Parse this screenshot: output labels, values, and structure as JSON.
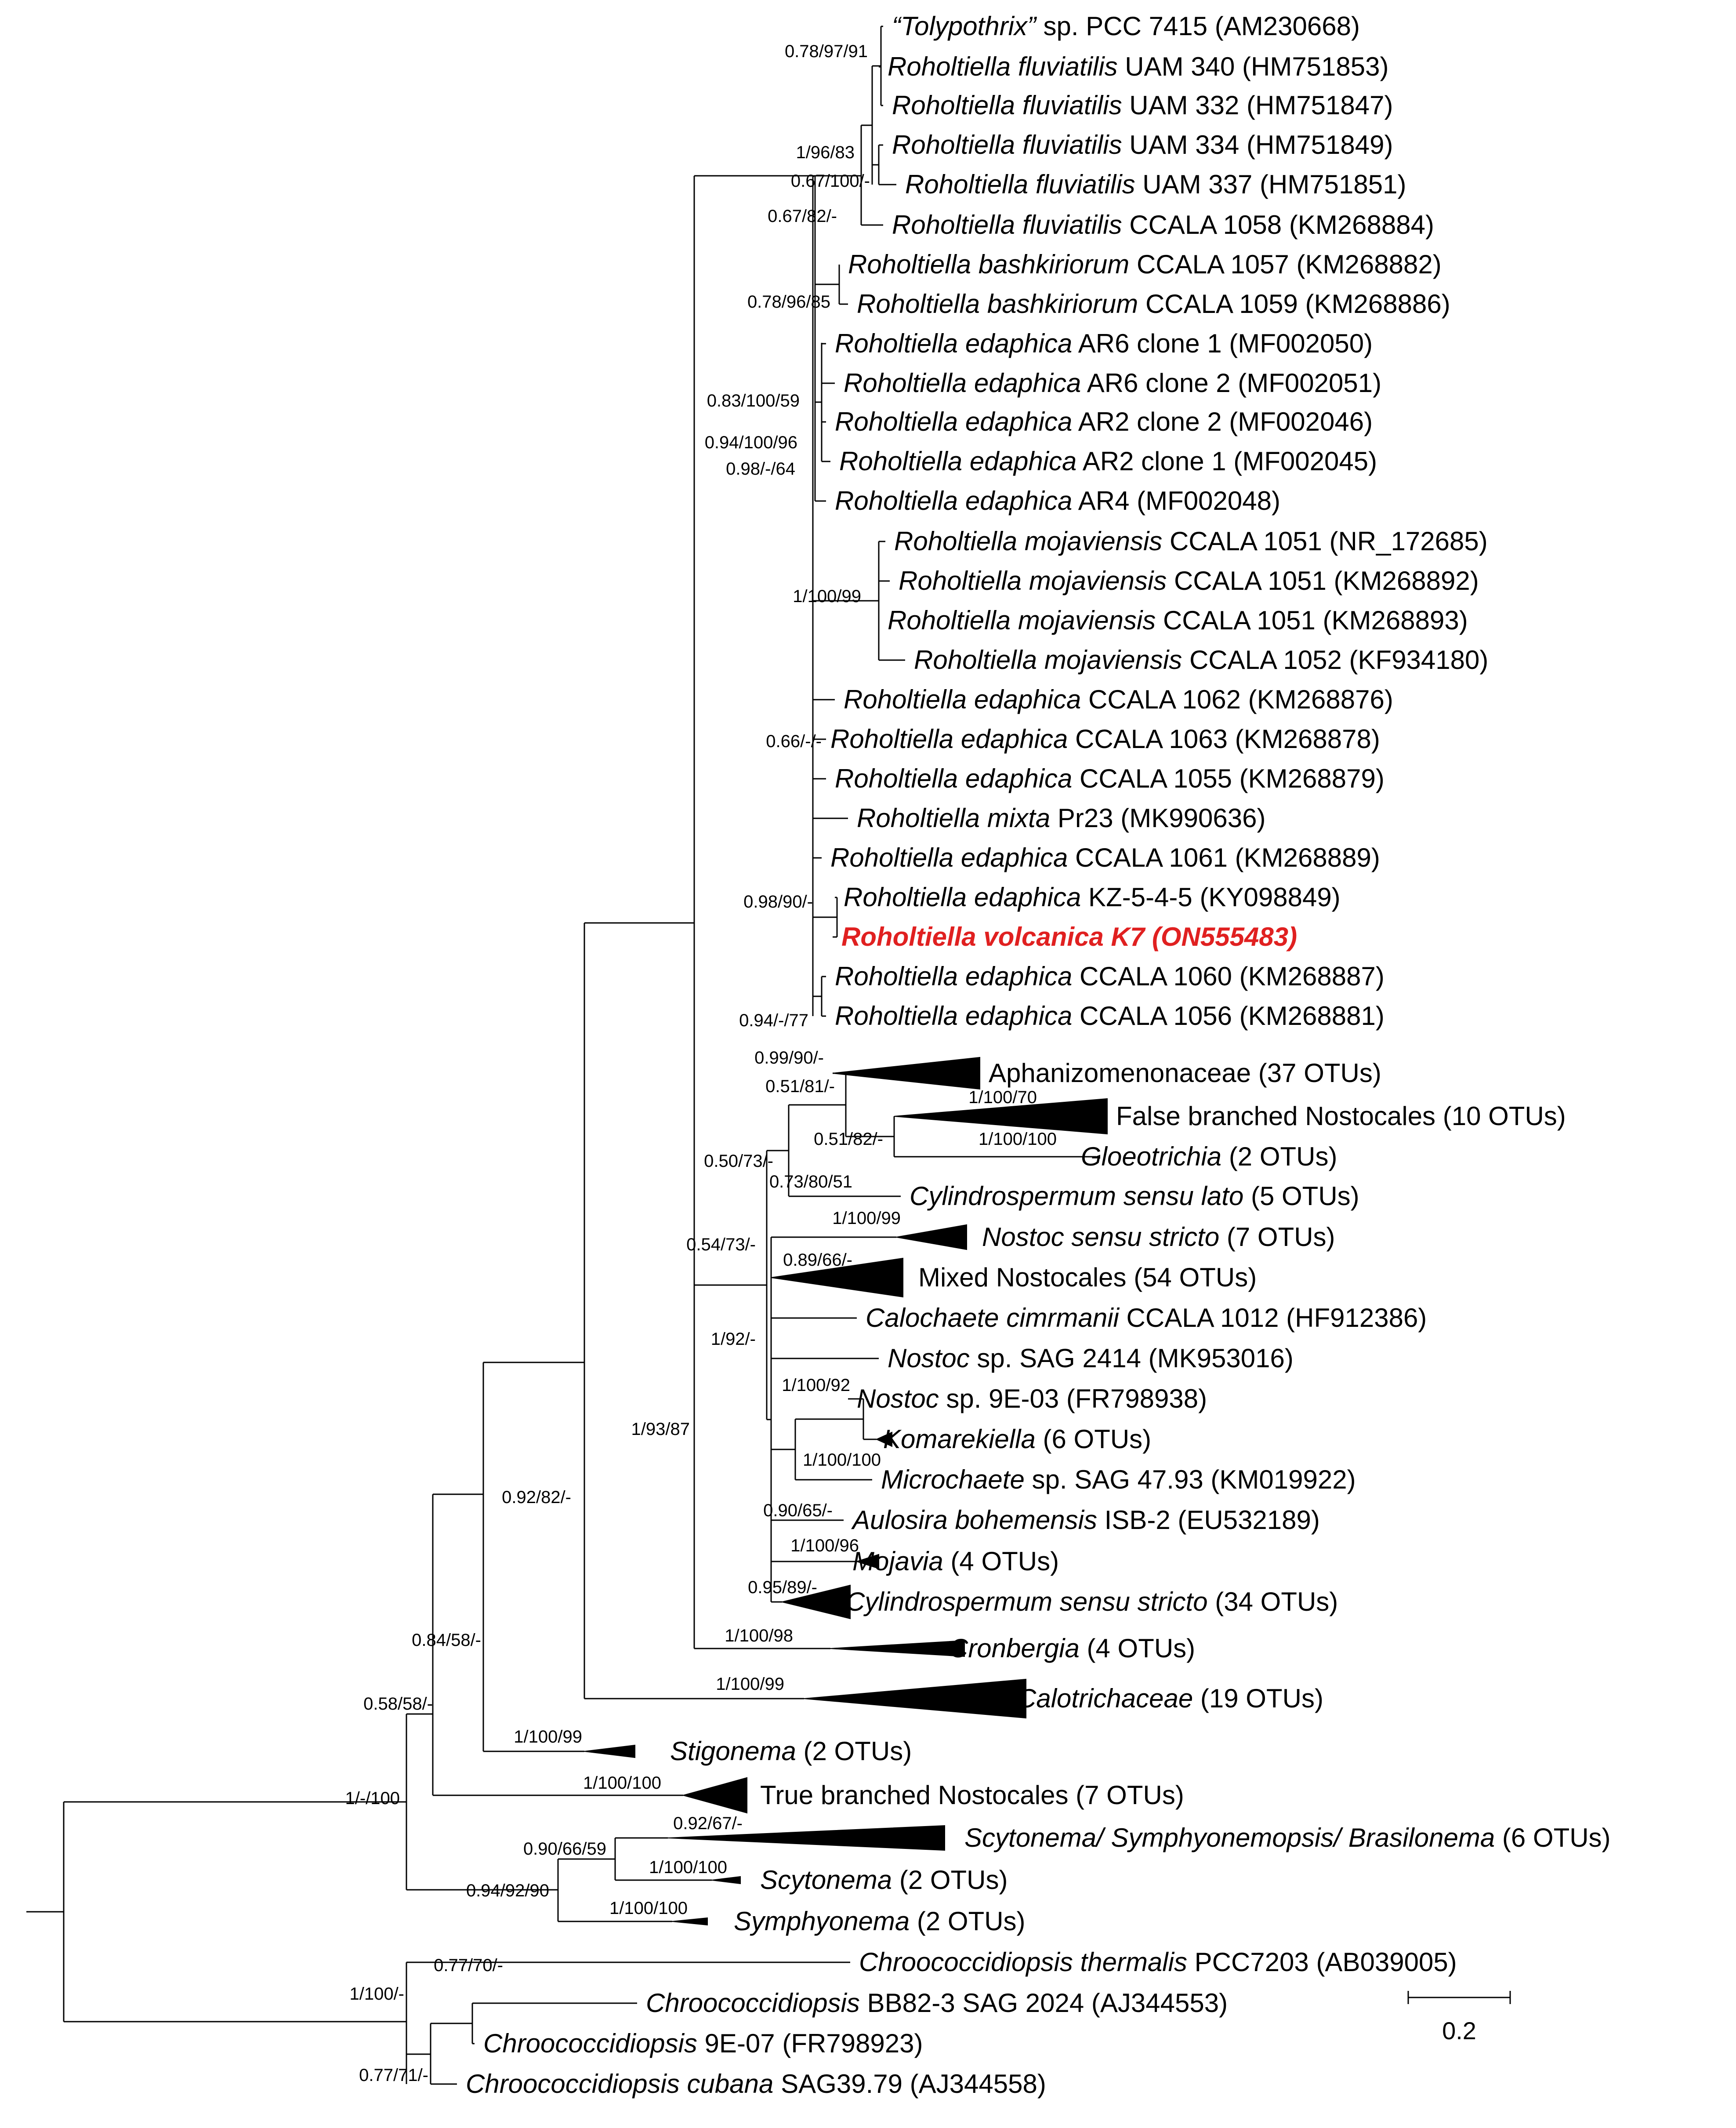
{
  "figure": {
    "type": "phylogenetic-tree",
    "highlight_color": "#e02020",
    "line_color": "#000000"
  },
  "tips": [
    {
      "id": "t1",
      "genus": "“Tolypothrix”",
      "rest": " sp. PCC 7415 (AM230668)"
    },
    {
      "id": "t2",
      "genus": "Roholtiella fluviatilis",
      "rest": " UAM 340 (HM751853)"
    },
    {
      "id": "t3",
      "genus": "Roholtiella fluviatilis",
      "rest": " UAM 332 (HM751847)"
    },
    {
      "id": "t4",
      "genus": "Roholtiella fluviatilis",
      "rest": " UAM 334 (HM751849)"
    },
    {
      "id": "t5",
      "genus": "Roholtiella fluviatilis",
      "rest": " UAM 337 (HM751851)"
    },
    {
      "id": "t6",
      "genus": "Roholtiella fluviatilis",
      "rest": " CCALA 1058 (KM268884)"
    },
    {
      "id": "t7",
      "genus": "Roholtiella bashkiriorum",
      "rest": " CCALA 1057 (KM268882)"
    },
    {
      "id": "t8",
      "genus": "Roholtiella bashkiriorum",
      "rest": " CCALA 1059 (KM268886)"
    },
    {
      "id": "t9",
      "genus": "Roholtiella edaphica",
      "rest": " AR6 clone 1 (MF002050)"
    },
    {
      "id": "t10",
      "genus": "Roholtiella edaphica",
      "rest": " AR6 clone 2 (MF002051)"
    },
    {
      "id": "t11",
      "genus": "Roholtiella edaphica",
      "rest": " AR2 clone 2 (MF002046)"
    },
    {
      "id": "t12",
      "genus": "Roholtiella edaphica",
      "rest": " AR2 clone 1 (MF002045)"
    },
    {
      "id": "t13",
      "genus": "Roholtiella edaphica",
      "rest": " AR4 (MF002048)"
    },
    {
      "id": "t14",
      "genus": "Roholtiella mojaviensis",
      "rest": " CCALA 1051 (NR_172685)"
    },
    {
      "id": "t15",
      "genus": "Roholtiella mojaviensis",
      "rest": " CCALA 1051 (KM268892)"
    },
    {
      "id": "t16",
      "genus": "Roholtiella mojaviensis",
      "rest": " CCALA 1051 (KM268893)"
    },
    {
      "id": "t17",
      "genus": "Roholtiella mojaviensis",
      "rest": " CCALA 1052 (KF934180)"
    },
    {
      "id": "t18",
      "genus": "Roholtiella edaphica",
      "rest": " CCALA 1062 (KM268876)"
    },
    {
      "id": "t19",
      "genus": "Roholtiella edaphica",
      "rest": " CCALA 1063 (KM268878)"
    },
    {
      "id": "t20",
      "genus": "Roholtiella edaphica",
      "rest": " CCALA 1055 (KM268879)"
    },
    {
      "id": "t21",
      "genus": "Roholtiella mixta",
      "rest": " Pr23 (MK990636)"
    },
    {
      "id": "t22",
      "genus": "Roholtiella edaphica",
      "rest": " CCALA 1061 (KM268889)"
    },
    {
      "id": "t23",
      "genus": "Roholtiella edaphica",
      "rest": " KZ-5-4-5 (KY098849)"
    },
    {
      "id": "t24",
      "genus": "Roholtiella volcanica K7 (ON555483)",
      "rest": "",
      "highlight": true
    },
    {
      "id": "t25",
      "genus": "Roholtiella edaphica",
      "rest": " CCALA 1060 (KM268887)"
    },
    {
      "id": "t26",
      "genus": "Roholtiella edaphica",
      "rest": " CCALA 1056 (KM268881)"
    },
    {
      "id": "t27",
      "genus": "",
      "rest": "Aphanizomenonaceae (37 OTUs)"
    },
    {
      "id": "t28",
      "genus": "",
      "rest": "False branched Nostocales (10 OTUs)"
    },
    {
      "id": "t29",
      "genus": "Gloeotrichia",
      "rest": " (2 OTUs)"
    },
    {
      "id": "t30",
      "genus": "Cylindrospermum sensu lato",
      "rest": " (5 OTUs)"
    },
    {
      "id": "t31",
      "genus": "Nostoc sensu stricto",
      "rest": " (7 OTUs)"
    },
    {
      "id": "t32",
      "genus": "",
      "rest": "Mixed Nostocales (54 OTUs)"
    },
    {
      "id": "t33",
      "genus": "Calochaete cimrmanii",
      "rest": " CCALA 1012 (HF912386)"
    },
    {
      "id": "t34",
      "genus": "Nostoc",
      "rest": " sp. SAG 2414 (MK953016)"
    },
    {
      "id": "t35",
      "genus": "Nostoc",
      "rest": " sp. 9E-03 (FR798938)"
    },
    {
      "id": "t36",
      "genus": "Komarekiella",
      "rest": " (6 OTUs)"
    },
    {
      "id": "t37",
      "genus": "Microchaete",
      "rest": " sp. SAG 47.93 (KM019922)"
    },
    {
      "id": "t38",
      "genus": "Aulosira bohemensis",
      "rest": " ISB-2 (EU532189)"
    },
    {
      "id": "t39",
      "genus": "Mojavia",
      "rest": " (4 OTUs)"
    },
    {
      "id": "t40",
      "genus": "Cylindrospermum sensu stricto",
      "rest": " (34 OTUs)"
    },
    {
      "id": "t41",
      "genus": "Cronbergia",
      "rest": " (4 OTUs)"
    },
    {
      "id": "t42",
      "genus": "Calotrichaceae",
      "rest": " (19 OTUs)"
    },
    {
      "id": "t43",
      "genus": "Stigonema",
      "rest": " (2 OTUs)"
    },
    {
      "id": "t44",
      "genus": "",
      "rest": "True branched Nostocales (7 OTUs)"
    },
    {
      "id": "t45",
      "genus": "Scytonema/ Symphyonemopsis/ Brasilonema",
      "rest": " (6 OTUs)"
    },
    {
      "id": "t46",
      "genus": "Scytonema",
      "rest": " (2 OTUs)"
    },
    {
      "id": "t47",
      "genus": "Symphyonema",
      "rest": " (2 OTUs)"
    },
    {
      "id": "t48",
      "genus": "Chroococcidiopsis thermalis",
      "rest": " PCC7203 (AB039005)"
    },
    {
      "id": "t49",
      "genus": "Chroococcidiopsis",
      "rest": " BB82-3 SAG 2024 (AJ344553)"
    },
    {
      "id": "t50",
      "genus": "Chroococcidiopsis",
      "rest": " 9E-07 (FR798923)"
    },
    {
      "id": "t51",
      "genus": "Chroococcidiopsis cubana",
      "rest": " SAG39.79 (AJ344558)"
    }
  ],
  "support_values": [
    "0.78/97/91",
    "1/96/83",
    "0.67/100/-",
    "0.67/82/-",
    "0.78/96/85",
    "0.83/100/59",
    "0.94/100/96",
    "0.98/-/64",
    "1/100/99",
    "0.66/-/-",
    "0.98/90/-",
    "0.94/-/77",
    "0.99/90/-",
    "0.51/81/-",
    "1/100/70",
    "0.51/82/-",
    "1/100/100",
    "0.50/73/-",
    "0.73/80/51",
    "0.54/73/-",
    "1/100/99",
    "0.89/66/-",
    "1/92/-",
    "1/100/92",
    "1/100/100",
    "0.90/65/-",
    "1/100/96",
    "0.95/89/-",
    "1/100/98",
    "1/93/87",
    "1/100/99",
    "0.92/82/-",
    "0.84/58/-",
    "1/100/99",
    "0.58/58/-",
    "1/100/100",
    "1/-/100",
    "0.92/67/-",
    "0.90/66/59",
    "1/100/100",
    "0.94/92/90",
    "1/100/100",
    "0.77/70/-",
    "0.77/71/-",
    "1/100/-"
  ],
  "scale_bar": {
    "label": "0.2",
    "value": 0.2
  }
}
